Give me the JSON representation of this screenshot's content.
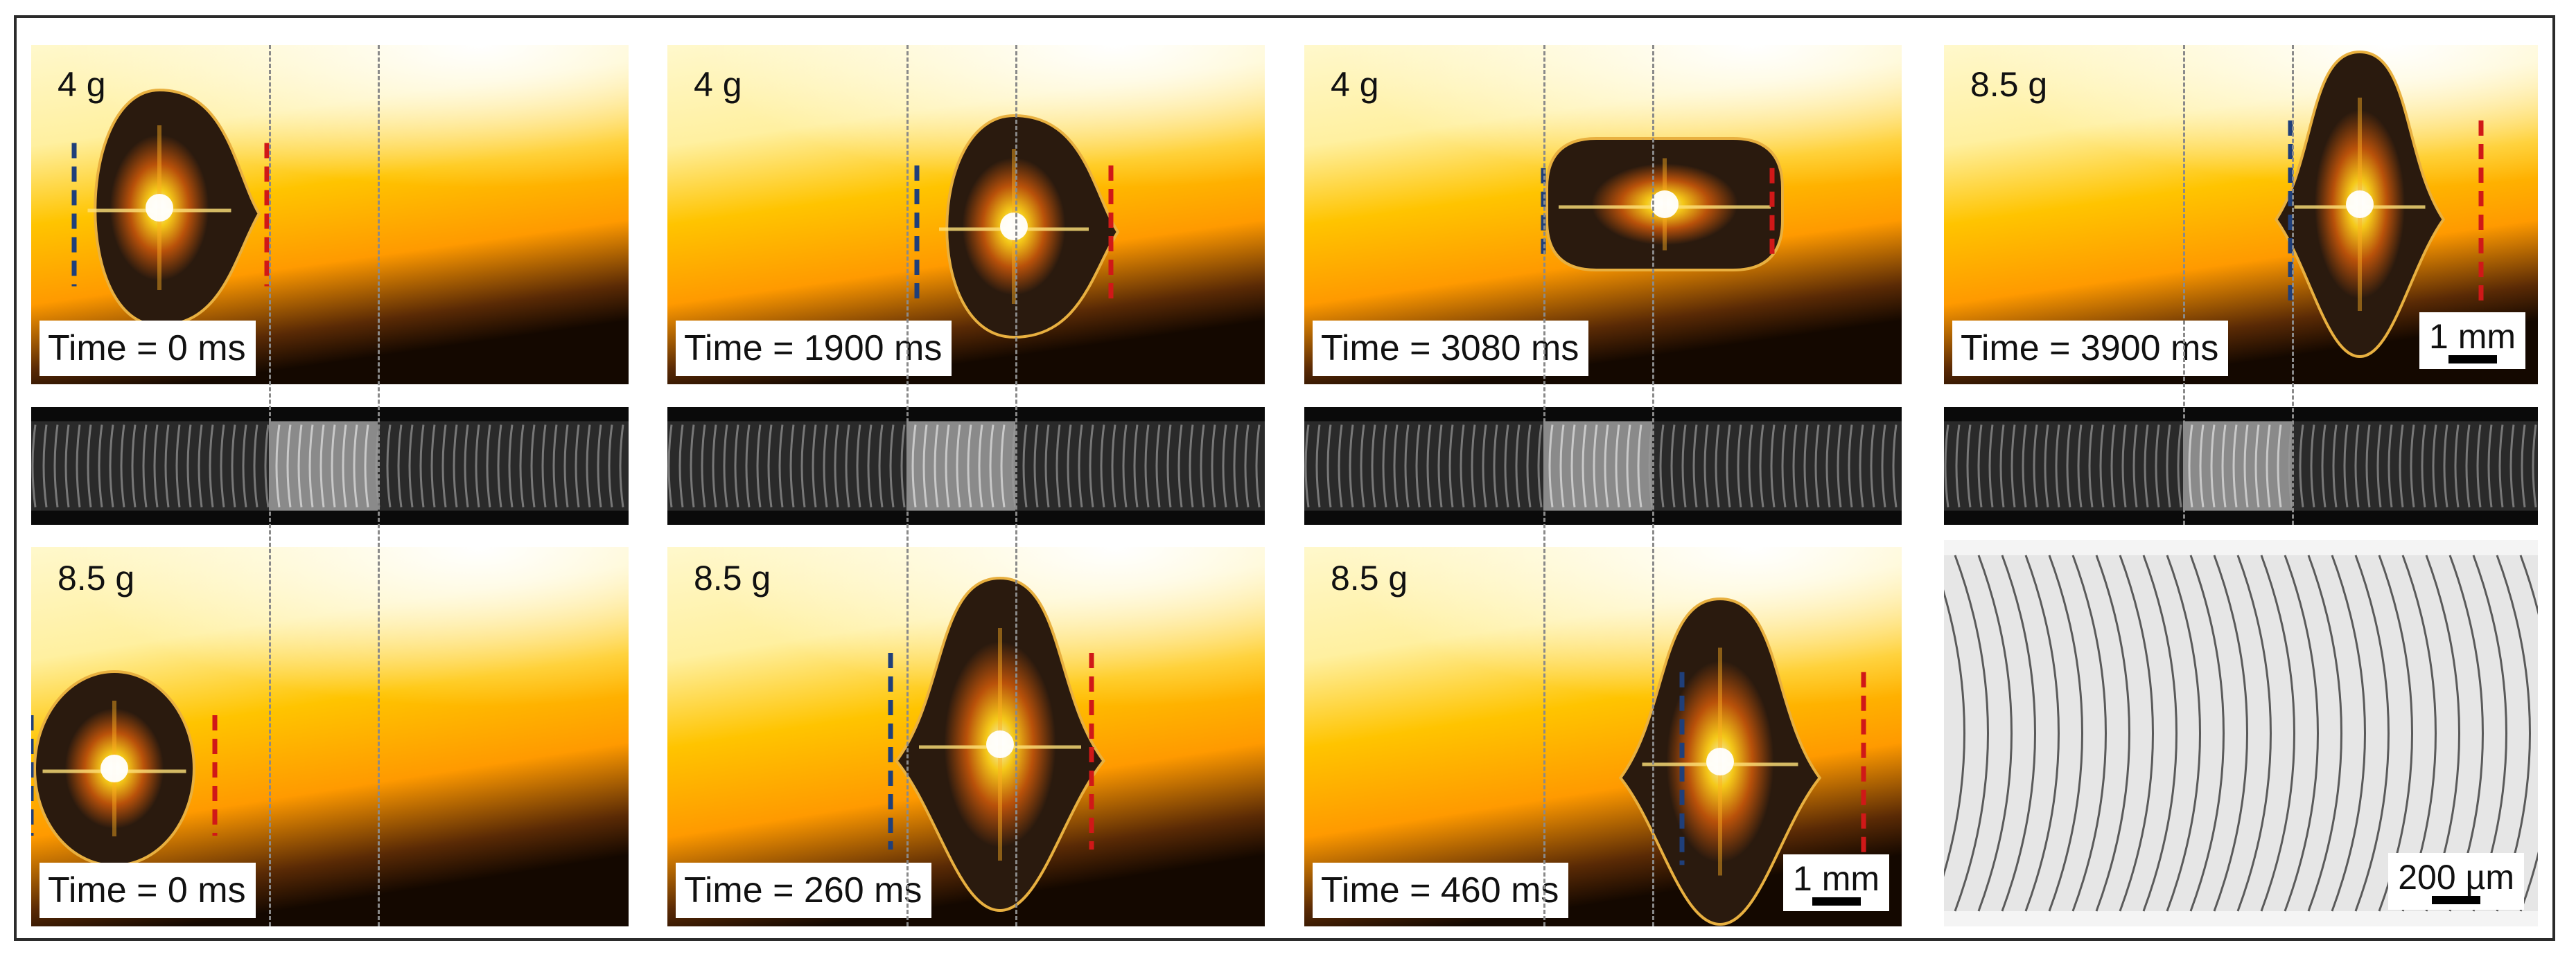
{
  "frames_top": [
    {
      "weight": "4 g",
      "time": "Time = 0 ms"
    },
    {
      "weight": "4 g",
      "time": "Time = 1900 ms"
    },
    {
      "weight": "4 g",
      "time": "Time = 3080 ms"
    },
    {
      "weight": "8.5 g",
      "time": "Time = 3900 ms",
      "scale": "1 mm"
    }
  ],
  "frames_bottom": [
    {
      "weight": "8.5 g",
      "time": "Time = 0 ms"
    },
    {
      "weight": "8.5 g",
      "time": "Time = 260 ms"
    },
    {
      "weight": "8.5 g",
      "time": "Time = 460 ms",
      "scale": "1 mm"
    }
  ],
  "micrograph": {
    "scale": "200 µm"
  },
  "colors": {
    "drop_dark": "#2a1a0e",
    "glow": "#ffd21a",
    "bg_hot": "#ff9a00",
    "bg_light": "#fff8cc",
    "marker_left": "#1f3f7a",
    "marker_right": "#d01818"
  }
}
